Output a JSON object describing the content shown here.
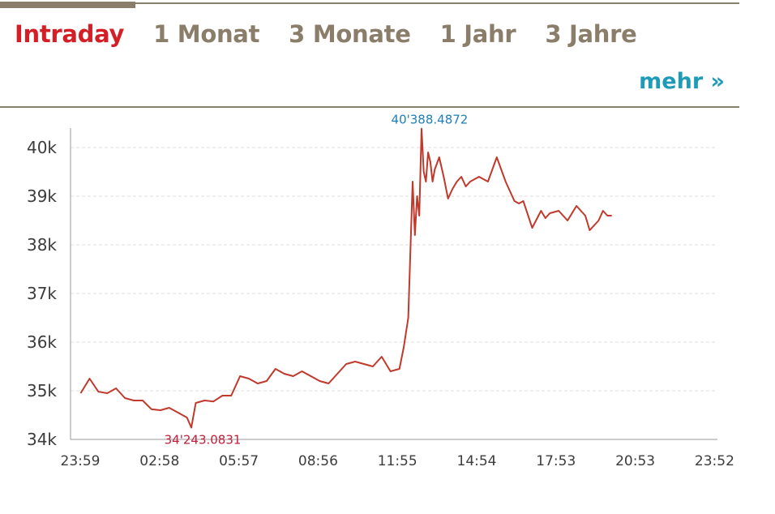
{
  "tabs": [
    {
      "label": "Intraday",
      "active": true
    },
    {
      "label": "1 Monat",
      "active": false
    },
    {
      "label": "3 Monate",
      "active": false
    },
    {
      "label": "1 Jahr",
      "active": false
    },
    {
      "label": "3 Jahre",
      "active": false
    }
  ],
  "more_link": "mehr »",
  "colors": {
    "accent_active": "#d51f27",
    "tab_inactive": "#8a7d69",
    "link": "#1e9bb8",
    "line": "#c0392b",
    "max_label": "#1e7fb8",
    "min_label": "#c0203a",
    "grid": "#dddddd"
  },
  "chart_data": {
    "type": "line",
    "title": "",
    "xlabel": "",
    "ylabel": "",
    "ylim": [
      34000,
      40700
    ],
    "grid": true,
    "y_ticks": [
      34000,
      35000,
      36000,
      37000,
      38000,
      39000,
      40000
    ],
    "y_tick_labels": [
      "34k",
      "35k",
      "36k",
      "37k",
      "38k",
      "39k",
      "40k"
    ],
    "x_ticks": [
      "23:59",
      "02:58",
      "05:57",
      "08:56",
      "11:55",
      "14:54",
      "17:53",
      "20:53",
      "23:52"
    ],
    "series": [
      {
        "x": [
          "00:00",
          "00:20",
          "00:40",
          "01:00",
          "01:20",
          "01:40",
          "02:00",
          "02:20",
          "02:40",
          "03:00",
          "03:20",
          "03:40",
          "04:00",
          "04:10",
          "04:20",
          "04:40",
          "05:00",
          "05:20",
          "05:40",
          "06:00",
          "06:20",
          "06:40",
          "07:00",
          "07:20",
          "07:40",
          "08:00",
          "08:20",
          "08:40",
          "09:00",
          "09:20",
          "09:40",
          "10:00",
          "10:20",
          "10:40",
          "11:00",
          "11:20",
          "11:40",
          "12:00",
          "12:10",
          "12:20",
          "12:30",
          "12:35",
          "12:40",
          "12:45",
          "12:50",
          "12:55",
          "13:00",
          "13:05",
          "13:10",
          "13:15",
          "13:20",
          "13:30",
          "13:40",
          "13:50",
          "14:00",
          "14:10",
          "14:20",
          "14:30",
          "14:40",
          "15:00",
          "15:20",
          "15:40",
          "16:00",
          "16:20",
          "16:30",
          "16:40",
          "17:00",
          "17:20",
          "17:30",
          "17:40",
          "18:00",
          "18:20",
          "18:40",
          "19:00",
          "19:10",
          "19:20",
          "19:30",
          "19:40",
          "19:50",
          "20:00"
        ],
        "y": [
          34950,
          35250,
          34980,
          34950,
          35050,
          34850,
          34800,
          34800,
          34620,
          34600,
          34650,
          34550,
          34450,
          34243.0831,
          34750,
          34800,
          34780,
          34900,
          34900,
          35300,
          35250,
          35150,
          35200,
          35450,
          35350,
          35300,
          35400,
          35300,
          35200,
          35150,
          35350,
          35550,
          35600,
          35550,
          35500,
          35700,
          35400,
          35450,
          35900,
          36500,
          39300,
          38200,
          39000,
          38600,
          40388.4872,
          39500,
          39300,
          39900,
          39700,
          39300,
          39550,
          39800,
          39400,
          38950,
          39150,
          39300,
          39400,
          39200,
          39300,
          39400,
          39300,
          39800,
          39300,
          38900,
          38850,
          38900,
          38350,
          38700,
          38550,
          38650,
          38700,
          38500,
          38800,
          38600,
          38300,
          38400,
          38500,
          38700,
          38600,
          38600
        ]
      }
    ],
    "annotations": [
      {
        "label": "40'388.4872",
        "x": "12:50",
        "y": 40388.4872,
        "kind": "max"
      },
      {
        "label": "34'243.0831",
        "x": "04:10",
        "y": 34243.0831,
        "kind": "min"
      }
    ]
  }
}
